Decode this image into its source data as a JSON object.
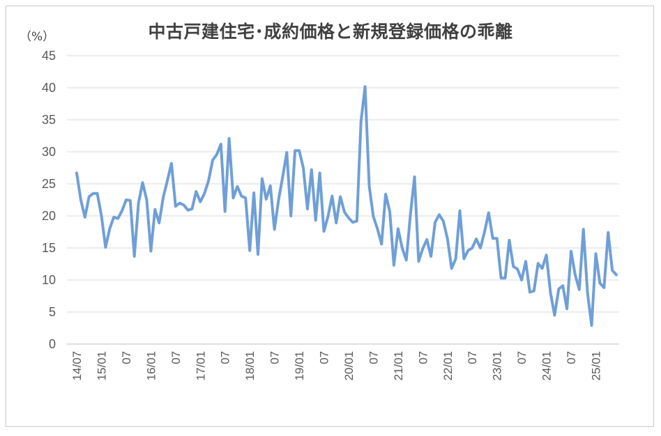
{
  "chart_data": {
    "type": "line",
    "title": "中古戸建住宅･成約価格と新規登録価格の乖離",
    "ylabel": "（%）",
    "xlabel": "",
    "ylim": [
      0,
      45
    ],
    "yticks": [
      "0",
      "5",
      "10",
      "15",
      "20",
      "25",
      "30",
      "35",
      "40",
      "45"
    ],
    "grid": "horizontal",
    "x_start": "2014-07",
    "xtick_labels": [
      {
        "index": 0,
        "label": "14/07"
      },
      {
        "index": 6,
        "label": "15/01"
      },
      {
        "index": 12,
        "label": "07"
      },
      {
        "index": 18,
        "label": "16/01"
      },
      {
        "index": 24,
        "label": "07"
      },
      {
        "index": 30,
        "label": "17/01"
      },
      {
        "index": 36,
        "label": "07"
      },
      {
        "index": 42,
        "label": "18/01"
      },
      {
        "index": 48,
        "label": "07"
      },
      {
        "index": 54,
        "label": "19/01"
      },
      {
        "index": 60,
        "label": "07"
      },
      {
        "index": 66,
        "label": "20/01"
      },
      {
        "index": 72,
        "label": "07"
      },
      {
        "index": 78,
        "label": "21/01"
      },
      {
        "index": 84,
        "label": "07"
      },
      {
        "index": 90,
        "label": "22/01"
      },
      {
        "index": 96,
        "label": "07"
      },
      {
        "index": 102,
        "label": "23/01"
      },
      {
        "index": 108,
        "label": "07"
      },
      {
        "index": 114,
        "label": "24/01"
      },
      {
        "index": 120,
        "label": "07"
      },
      {
        "index": 126,
        "label": "25/01"
      }
    ],
    "series": [
      {
        "color": "#6f9fd8",
        "values": [
          26.7,
          22.5,
          19.8,
          23.0,
          23.5,
          23.5,
          20.0,
          15.1,
          18.0,
          19.8,
          19.6,
          20.8,
          22.5,
          22.4,
          13.7,
          22.0,
          25.2,
          22.5,
          14.5,
          21.0,
          18.9,
          22.9,
          25.5,
          28.2,
          21.5,
          22.0,
          21.7,
          20.9,
          21.1,
          23.8,
          22.2,
          23.5,
          25.5,
          28.7,
          29.6,
          31.2,
          20.7,
          32.1,
          22.8,
          24.6,
          23.1,
          22.8,
          14.6,
          23.6,
          14.0,
          25.8,
          22.6,
          24.7,
          17.9,
          22.5,
          26.1,
          29.9,
          20.0,
          30.2,
          30.2,
          27.5,
          21.1,
          27.2,
          19.3,
          26.7,
          17.6,
          19.9,
          23.1,
          18.9,
          23.0,
          20.6,
          19.7,
          19.0,
          19.2,
          34.7,
          40.2,
          24.7,
          19.9,
          18.0,
          15.6,
          23.4,
          20.7,
          12.3,
          18.0,
          15.0,
          13.1,
          20.2,
          26.1,
          12.9,
          14.9,
          16.3,
          13.7,
          19.0,
          20.2,
          19.2,
          16.4,
          11.8,
          13.3,
          20.8,
          13.3,
          14.6,
          15.0,
          16.4,
          15.0,
          17.5,
          20.5,
          16.5,
          16.5,
          10.3,
          10.3,
          16.2,
          12.1,
          11.7,
          10.0,
          12.9,
          8.1,
          8.3,
          12.6,
          11.8,
          13.9,
          8.0,
          4.5,
          8.6,
          9.1,
          5.5,
          14.5,
          10.8,
          8.5,
          17.9,
          8.0,
          2.9,
          14.1,
          9.5,
          8.8,
          17.4,
          11.5,
          10.8
        ]
      }
    ]
  }
}
